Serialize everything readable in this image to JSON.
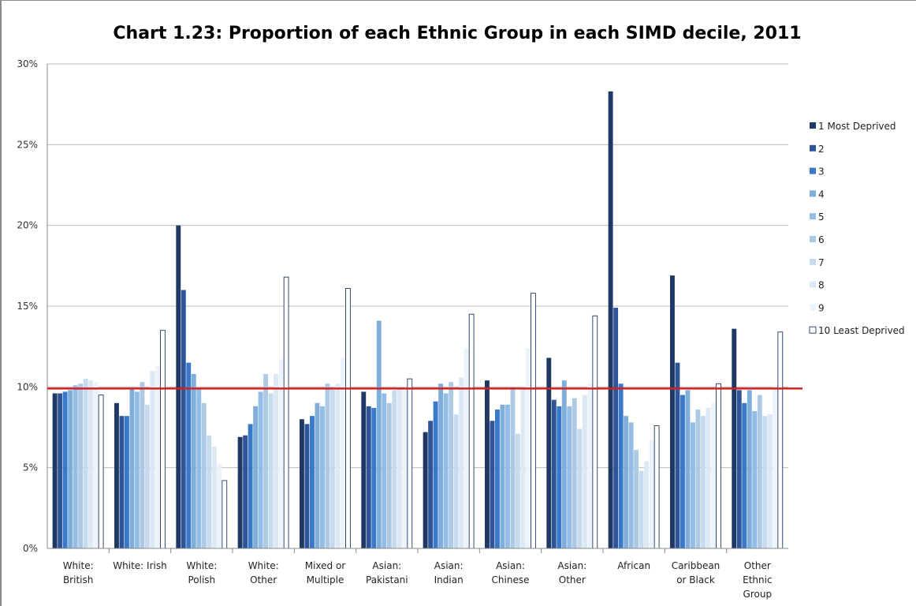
{
  "chart_data": {
    "type": "bar",
    "title": "Chart 1.23: Proportion of each Ethnic Group in each SIMD decile, 2011",
    "xlabel": "",
    "ylabel": "",
    "ylim": [
      0,
      30
    ],
    "yticks": [
      "0%",
      "5%",
      "10%",
      "15%",
      "20%",
      "25%",
      "30%"
    ],
    "categories": [
      [
        "White:",
        "British"
      ],
      [
        "White: Irish"
      ],
      [
        "White:",
        "Polish"
      ],
      [
        "White:",
        "Other"
      ],
      [
        "Mixed or",
        "Multiple"
      ],
      [
        "Asian:",
        "Pakistani"
      ],
      [
        "Asian:",
        "Indian"
      ],
      [
        "Asian:",
        "Chinese"
      ],
      [
        "Asian:",
        "Other"
      ],
      [
        "African"
      ],
      [
        "Caribbean",
        "or Black"
      ],
      [
        "Other",
        "Ethnic",
        "Group"
      ]
    ],
    "legend_position": "right",
    "grid": true,
    "reference_line": {
      "value": 9.9,
      "color": "#d32020"
    },
    "series": [
      {
        "name": "1 Most Deprived",
        "color": "#1f3864",
        "values": [
          9.6,
          9.0,
          20.0,
          6.9,
          8.0,
          9.7,
          7.2,
          10.4,
          11.8,
          28.3,
          16.9,
          13.6
        ]
      },
      {
        "name": "2",
        "color": "#2e5597",
        "values": [
          9.6,
          8.2,
          16.0,
          7.0,
          7.7,
          8.8,
          7.9,
          7.9,
          9.2,
          14.9,
          11.5,
          9.8
        ]
      },
      {
        "name": "3",
        "color": "#3a78c8",
        "values": [
          9.7,
          8.2,
          11.5,
          7.7,
          8.2,
          8.7,
          9.1,
          8.6,
          8.8,
          10.2,
          9.5,
          9.0
        ]
      },
      {
        "name": "4",
        "color": "#7faedb",
        "values": [
          9.8,
          9.9,
          10.8,
          8.8,
          9.0,
          14.1,
          10.2,
          8.9,
          10.4,
          8.2,
          9.8,
          9.8
        ]
      },
      {
        "name": "5",
        "color": "#93bde6",
        "values": [
          10.1,
          9.7,
          9.9,
          9.7,
          8.8,
          9.6,
          9.6,
          8.9,
          8.8,
          7.8,
          7.8,
          8.5
        ]
      },
      {
        "name": "6",
        "color": "#adc9e4",
        "values": [
          10.2,
          10.3,
          9.0,
          10.8,
          10.2,
          9.0,
          10.3,
          10.0,
          9.3,
          6.1,
          8.6,
          9.5
        ]
      },
      {
        "name": "7",
        "color": "#c7dbef",
        "values": [
          10.5,
          8.9,
          7.0,
          9.6,
          10.0,
          9.8,
          8.3,
          7.1,
          7.4,
          4.8,
          8.2,
          8.2
        ]
      },
      {
        "name": "8",
        "color": "#dce8f4",
        "values": [
          10.4,
          11.0,
          6.3,
          10.8,
          10.2,
          10.0,
          10.6,
          10.0,
          9.5,
          5.4,
          8.7,
          8.3
        ]
      },
      {
        "name": "9",
        "color": "#ecf3fa",
        "values": [
          10.3,
          11.3,
          5.2,
          11.7,
          11.8,
          10.0,
          12.4,
          12.4,
          10.2,
          6.7,
          9.0,
          10.0
        ]
      },
      {
        "name": "10 Least Deprived",
        "color": "#ffffff",
        "stroke": "#1f3864",
        "values": [
          9.5,
          13.5,
          4.2,
          16.8,
          16.1,
          10.5,
          14.5,
          15.8,
          14.4,
          7.6,
          10.2,
          13.4
        ]
      }
    ]
  }
}
